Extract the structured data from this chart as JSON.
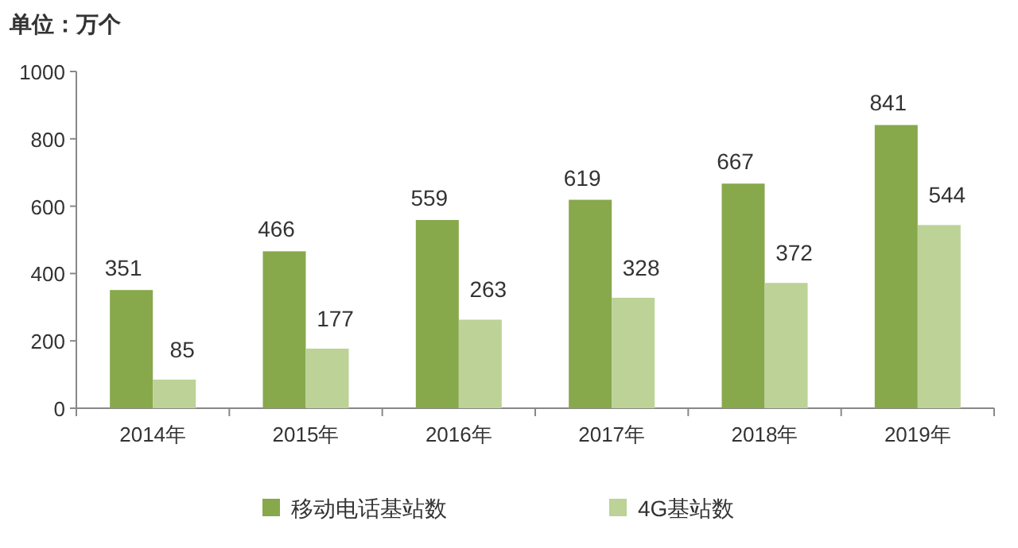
{
  "chart_data": {
    "type": "bar",
    "ylabel": "单位：万个",
    "categories": [
      "2014年",
      "2015年",
      "2016年",
      "2017年",
      "2018年",
      "2019年"
    ],
    "series": [
      {
        "name": "移动电话基站数",
        "color": "#88a84c",
        "values": [
          351,
          466,
          559,
          619,
          667,
          841
        ]
      },
      {
        "name": "4G基站数",
        "color": "#bcd297",
        "values": [
          85,
          177,
          263,
          328,
          372,
          544
        ]
      }
    ],
    "ylim": [
      0,
      1000
    ],
    "yticks": [
      0,
      200,
      400,
      600,
      800,
      1000
    ],
    "data_labels": true,
    "legend": "bottom"
  }
}
